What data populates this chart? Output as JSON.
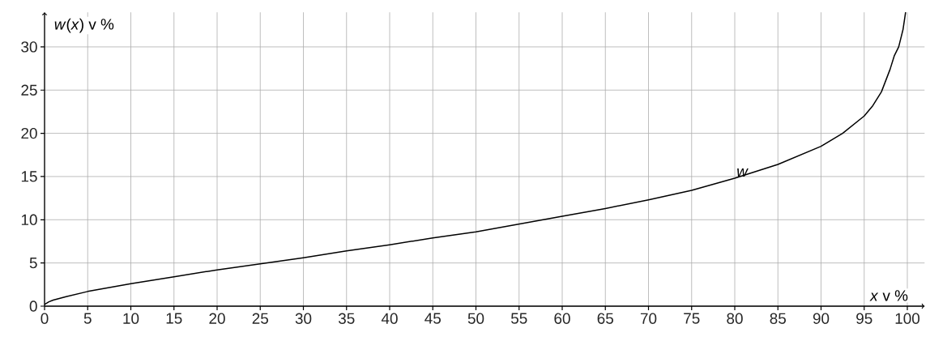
{
  "chart_data": {
    "type": "line",
    "xlabel": "*x* v %",
    "ylabel": "*w*(*x*) v %",
    "xlim": [
      0,
      102
    ],
    "ylim": [
      0,
      34
    ],
    "xticks": [
      0,
      5,
      10,
      15,
      20,
      25,
      30,
      35,
      40,
      45,
      50,
      55,
      60,
      65,
      70,
      75,
      80,
      85,
      90,
      95,
      100
    ],
    "yticks": [
      0,
      5,
      10,
      15,
      20,
      25,
      30
    ],
    "grid": true,
    "marker": "none",
    "line_style": "solid",
    "series": [
      {
        "name": "w",
        "color": "#000000",
        "x": [
          0,
          0.5,
          1,
          2.5,
          5,
          10,
          15,
          20,
          25,
          30,
          35,
          40,
          45,
          50,
          55,
          60,
          65,
          70,
          75,
          80,
          85,
          90,
          92.5,
          95,
          96,
          97,
          98,
          98.5,
          99,
          99.5,
          99.8
        ],
        "values": [
          0.2,
          0.5,
          0.7,
          1.1,
          1.7,
          2.6,
          3.4,
          4.2,
          4.9,
          5.6,
          6.4,
          7.1,
          7.9,
          8.6,
          9.5,
          10.4,
          11.3,
          12.3,
          13.4,
          14.8,
          16.4,
          18.5,
          20,
          22,
          23.2,
          24.8,
          27.4,
          29,
          30,
          32,
          34
        ]
      }
    ]
  }
}
